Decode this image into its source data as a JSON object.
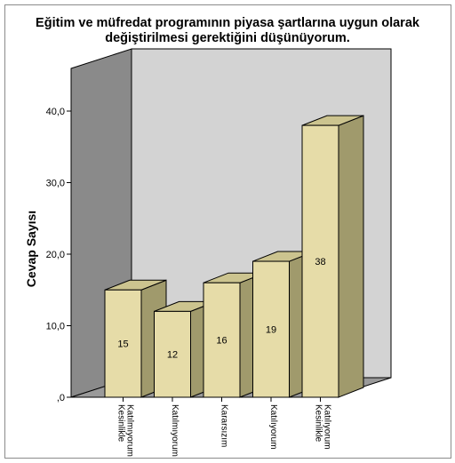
{
  "chart_data": {
    "type": "bar",
    "title_lines": [
      "Eğitim ve müfredat programının piyasa şartlarına uygun olarak",
      "değiştirilmesi gerektiğini düşünüyorum."
    ],
    "ylabel": "Cevap Sayısı",
    "xlabel": "",
    "categories": [
      [
        "Kesinlikle",
        "Katılmıyorum"
      ],
      [
        "Katılmıyorum"
      ],
      [
        "Kararsızım"
      ],
      [
        "Katılıyorum"
      ],
      [
        "Kesinlikle",
        "Katılıyorum"
      ]
    ],
    "values": [
      15,
      12,
      16,
      19,
      38
    ],
    "value_labels": [
      "15",
      "12",
      "16",
      "19",
      "38"
    ],
    "ylim": [
      0,
      40
    ],
    "yticks": [
      0,
      10,
      20,
      30,
      40
    ],
    "ytick_labels": [
      ",0",
      "10,0",
      "20,0",
      "30,0",
      "40,0"
    ],
    "grid": false,
    "legend": "none"
  },
  "colors": {
    "bar_front": "#e6dca8",
    "bar_side": "#a09a6c",
    "bar_top": "#ccc48f",
    "back_wall": "#d3d3d3",
    "left_wall": "#8a8a8a",
    "floor": "#9a9a9a",
    "outline": "#000000"
  }
}
